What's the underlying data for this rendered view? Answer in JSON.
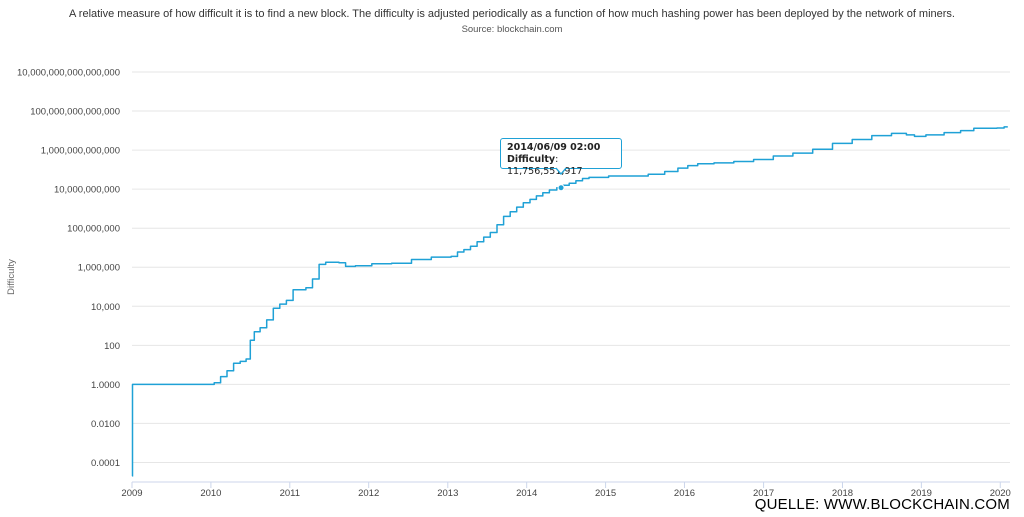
{
  "chart_data": {
    "type": "line",
    "subtitle": "A relative measure of how difficult it is to find a new block. The difficulty is adjusted periodically as a function of how much hashing power has been deployed by the network of miners.",
    "source": "Source: blockchain.com",
    "ylabel": "Difficulty",
    "y_scale": "log",
    "ylim": [
      1e-05,
      10000000000000000
    ],
    "xlim": [
      "2009-01-01",
      "2020-02-15"
    ],
    "y_ticks": [
      {
        "value": 0.0001,
        "label": "0.0001"
      },
      {
        "value": 0.01,
        "label": "0.0100"
      },
      {
        "value": 1,
        "label": "1.0000"
      },
      {
        "value": 100,
        "label": "100"
      },
      {
        "value": 10000,
        "label": "10,000"
      },
      {
        "value": 1000000,
        "label": "1,000,000"
      },
      {
        "value": 100000000,
        "label": "100,000,000"
      },
      {
        "value": 10000000000,
        "label": "10,000,000,000"
      },
      {
        "value": 1000000000000,
        "label": "1,000,000,000,000"
      },
      {
        "value": 100000000000000,
        "label": "100,000,000,000,000"
      },
      {
        "value": 10000000000000000,
        "label": "10,000,000,000,000,000"
      }
    ],
    "x_ticks": [
      {
        "value": "2009-01-01",
        "label": "2009"
      },
      {
        "value": "2010-01-01",
        "label": "2010"
      },
      {
        "value": "2011-01-01",
        "label": "2011"
      },
      {
        "value": "2012-01-01",
        "label": "2012"
      },
      {
        "value": "2013-01-01",
        "label": "2013"
      },
      {
        "value": "2014-01-01",
        "label": "2014"
      },
      {
        "value": "2015-01-01",
        "label": "2015"
      },
      {
        "value": "2016-01-01",
        "label": "2016"
      },
      {
        "value": "2017-01-01",
        "label": "2017"
      },
      {
        "value": "2018-01-01",
        "label": "2018"
      },
      {
        "value": "2019-01-01",
        "label": "2019"
      },
      {
        "value": "2020-01-01",
        "label": "2020"
      }
    ],
    "grid": true,
    "line_color": "#1fa1d6",
    "series": [
      {
        "name": "Difficulty",
        "points": [
          {
            "x": "2009-01-03",
            "y": 2e-05
          },
          {
            "x": "2009-01-04",
            "y": 1
          },
          {
            "x": "2009-06-01",
            "y": 1
          },
          {
            "x": "2010-01-01",
            "y": 1
          },
          {
            "x": "2010-02-01",
            "y": 1.2
          },
          {
            "x": "2010-03-01",
            "y": 2.5
          },
          {
            "x": "2010-04-01",
            "y": 5
          },
          {
            "x": "2010-05-01",
            "y": 12
          },
          {
            "x": "2010-06-01",
            "y": 15
          },
          {
            "x": "2010-06-25",
            "y": 20
          },
          {
            "x": "2010-07-10",
            "y": 180
          },
          {
            "x": "2010-08-01",
            "y": 500
          },
          {
            "x": "2010-09-01",
            "y": 800
          },
          {
            "x": "2010-10-01",
            "y": 2000
          },
          {
            "x": "2010-11-01",
            "y": 8000
          },
          {
            "x": "2010-12-01",
            "y": 13000
          },
          {
            "x": "2011-01-01",
            "y": 20000
          },
          {
            "x": "2011-02-01",
            "y": 70000
          },
          {
            "x": "2011-03-01",
            "y": 70000
          },
          {
            "x": "2011-04-01",
            "y": 90000
          },
          {
            "x": "2011-05-01",
            "y": 250000
          },
          {
            "x": "2011-06-01",
            "y": 1400000
          },
          {
            "x": "2011-07-01",
            "y": 1800000
          },
          {
            "x": "2011-08-01",
            "y": 1800000
          },
          {
            "x": "2011-09-01",
            "y": 1700000
          },
          {
            "x": "2011-10-01",
            "y": 1100000
          },
          {
            "x": "2011-12-01",
            "y": 1200000
          },
          {
            "x": "2012-03-01",
            "y": 1500000
          },
          {
            "x": "2012-06-01",
            "y": 1600000
          },
          {
            "x": "2012-09-01",
            "y": 2500000
          },
          {
            "x": "2012-12-01",
            "y": 3300000
          },
          {
            "x": "2013-01-01",
            "y": 3300000
          },
          {
            "x": "2013-02-01",
            "y": 3600000
          },
          {
            "x": "2013-03-01",
            "y": 6000000
          },
          {
            "x": "2013-04-01",
            "y": 8000000
          },
          {
            "x": "2013-05-01",
            "y": 12000000
          },
          {
            "x": "2013-06-01",
            "y": 20000000
          },
          {
            "x": "2013-07-01",
            "y": 35000000
          },
          {
            "x": "2013-08-01",
            "y": 60000000
          },
          {
            "x": "2013-09-01",
            "y": 150000000
          },
          {
            "x": "2013-10-01",
            "y": 400000000
          },
          {
            "x": "2013-11-01",
            "y": 700000000
          },
          {
            "x": "2013-12-01",
            "y": 1200000000
          },
          {
            "x": "2014-01-01",
            "y": 2000000000
          },
          {
            "x": "2014-02-01",
            "y": 3000000000
          },
          {
            "x": "2014-03-01",
            "y": 4500000000
          },
          {
            "x": "2014-04-01",
            "y": 6500000000
          },
          {
            "x": "2014-05-01",
            "y": 9000000000
          },
          {
            "x": "2014-06-09",
            "y": 11756551917
          },
          {
            "x": "2014-07-01",
            "y": 16000000000
          },
          {
            "x": "2014-08-01",
            "y": 20000000000
          },
          {
            "x": "2014-09-01",
            "y": 27000000000
          },
          {
            "x": "2014-10-01",
            "y": 35000000000
          },
          {
            "x": "2014-11-01",
            "y": 40000000000
          },
          {
            "x": "2014-12-01",
            "y": 40000000000
          },
          {
            "x": "2015-03-01",
            "y": 47000000000
          },
          {
            "x": "2015-06-01",
            "y": 47000000000
          },
          {
            "x": "2015-09-01",
            "y": 58000000000
          },
          {
            "x": "2015-11-01",
            "y": 80000000000
          },
          {
            "x": "2016-01-01",
            "y": 120000000000
          },
          {
            "x": "2016-02-01",
            "y": 160000000000
          },
          {
            "x": "2016-04-01",
            "y": 200000000000
          },
          {
            "x": "2016-07-01",
            "y": 220000000000
          },
          {
            "x": "2016-10-01",
            "y": 260000000000
          },
          {
            "x": "2017-01-01",
            "y": 330000000000
          },
          {
            "x": "2017-04-01",
            "y": 500000000000
          },
          {
            "x": "2017-07-01",
            "y": 700000000000
          },
          {
            "x": "2017-10-01",
            "y": 1100000000000
          },
          {
            "x": "2018-01-01",
            "y": 2200000000000
          },
          {
            "x": "2018-04-01",
            "y": 3500000000000
          },
          {
            "x": "2018-07-01",
            "y": 5500000000000
          },
          {
            "x": "2018-10-01",
            "y": 7200000000000
          },
          {
            "x": "2018-11-15",
            "y": 6000000000000
          },
          {
            "x": "2018-12-15",
            "y": 5000000000000
          },
          {
            "x": "2019-03-01",
            "y": 6000000000000
          },
          {
            "x": "2019-06-01",
            "y": 7900000000000
          },
          {
            "x": "2019-08-01",
            "y": 10000000000000
          },
          {
            "x": "2019-10-01",
            "y": 13000000000000
          },
          {
            "x": "2019-12-01",
            "y": 13000000000000
          },
          {
            "x": "2020-01-01",
            "y": 13500000000000
          },
          {
            "x": "2020-02-05",
            "y": 15500000000000
          }
        ]
      }
    ],
    "tooltip": {
      "date": "2014/06/09 02:00",
      "label": "Difficulty",
      "value": "11,756,551,917",
      "x": "2014-06-09",
      "y": 11756551917
    }
  },
  "watermark": "QUELLE: WWW.BLOCKCHAIN.COM"
}
